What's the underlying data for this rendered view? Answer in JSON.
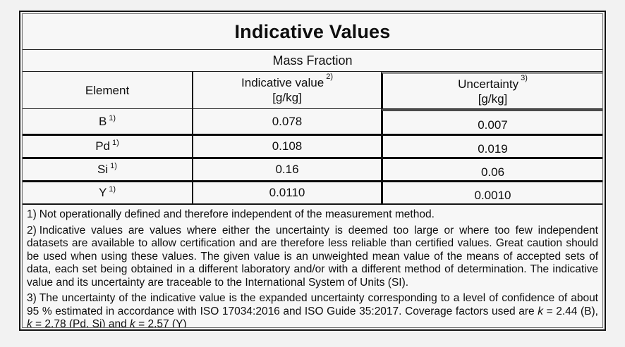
{
  "colors": {
    "page_background": "#f2f2f2",
    "table_background": "#f7f7f7",
    "border": "#141414",
    "text": "#0e0e0e"
  },
  "table": {
    "title": "Indicative Values",
    "subtitle": "Mass Fraction",
    "columns": [
      {
        "label": "Element",
        "note_ref": "",
        "unit": ""
      },
      {
        "label": "Indicative value",
        "note_ref": "2)",
        "unit": "[g/kg]"
      },
      {
        "label": "Uncertainty",
        "note_ref": "3)",
        "unit": "[g/kg]"
      }
    ],
    "rows": [
      {
        "element": "B",
        "note_ref": "1)",
        "indicative_value": "0.078",
        "uncertainty": "0.007"
      },
      {
        "element": "Pd",
        "note_ref": "1)",
        "indicative_value": "0.108",
        "uncertainty": "0.019"
      },
      {
        "element": "Si",
        "note_ref": "1)",
        "indicative_value": "0.16",
        "uncertainty": "0.06"
      },
      {
        "element": "Y",
        "note_ref": "1)",
        "indicative_value": "0.0110",
        "uncertainty": "0.0010"
      }
    ],
    "footnotes": [
      {
        "id": "1)",
        "segments": [
          {
            "text": "Not operationally defined and therefore independent of the measurement method.",
            "italic": false
          }
        ]
      },
      {
        "id": "2)",
        "segments": [
          {
            "text": "Indicative values are values where either the uncertainty is deemed too large or where too few independent datasets are available to allow certification and are therefore less reliable than certified values. Great caution should be used when using these values. The given value is an unweighted mean value of the means of accepted sets of data, each set being obtained in a different laboratory and/or with a different method of determination. The indicative value and its uncertainty are traceable to the International System of Units (SI).",
            "italic": false
          }
        ]
      },
      {
        "id": "3)",
        "segments": [
          {
            "text": "The uncertainty of the indicative value is the expanded uncertainty corresponding to a level of confidence of about 95 % estimated in accordance with ISO 17034:2016 and ISO Guide 35:2017. Coverage factors used are ",
            "italic": false
          },
          {
            "text": "k",
            "italic": true
          },
          {
            "text": " = 2.44 (B), ",
            "italic": false
          },
          {
            "text": "k",
            "italic": true
          },
          {
            "text": " = 2.78 (Pd, Si) and ",
            "italic": false
          },
          {
            "text": "k",
            "italic": true
          },
          {
            "text": " = 2.57 (Y)",
            "italic": false
          }
        ]
      }
    ]
  }
}
